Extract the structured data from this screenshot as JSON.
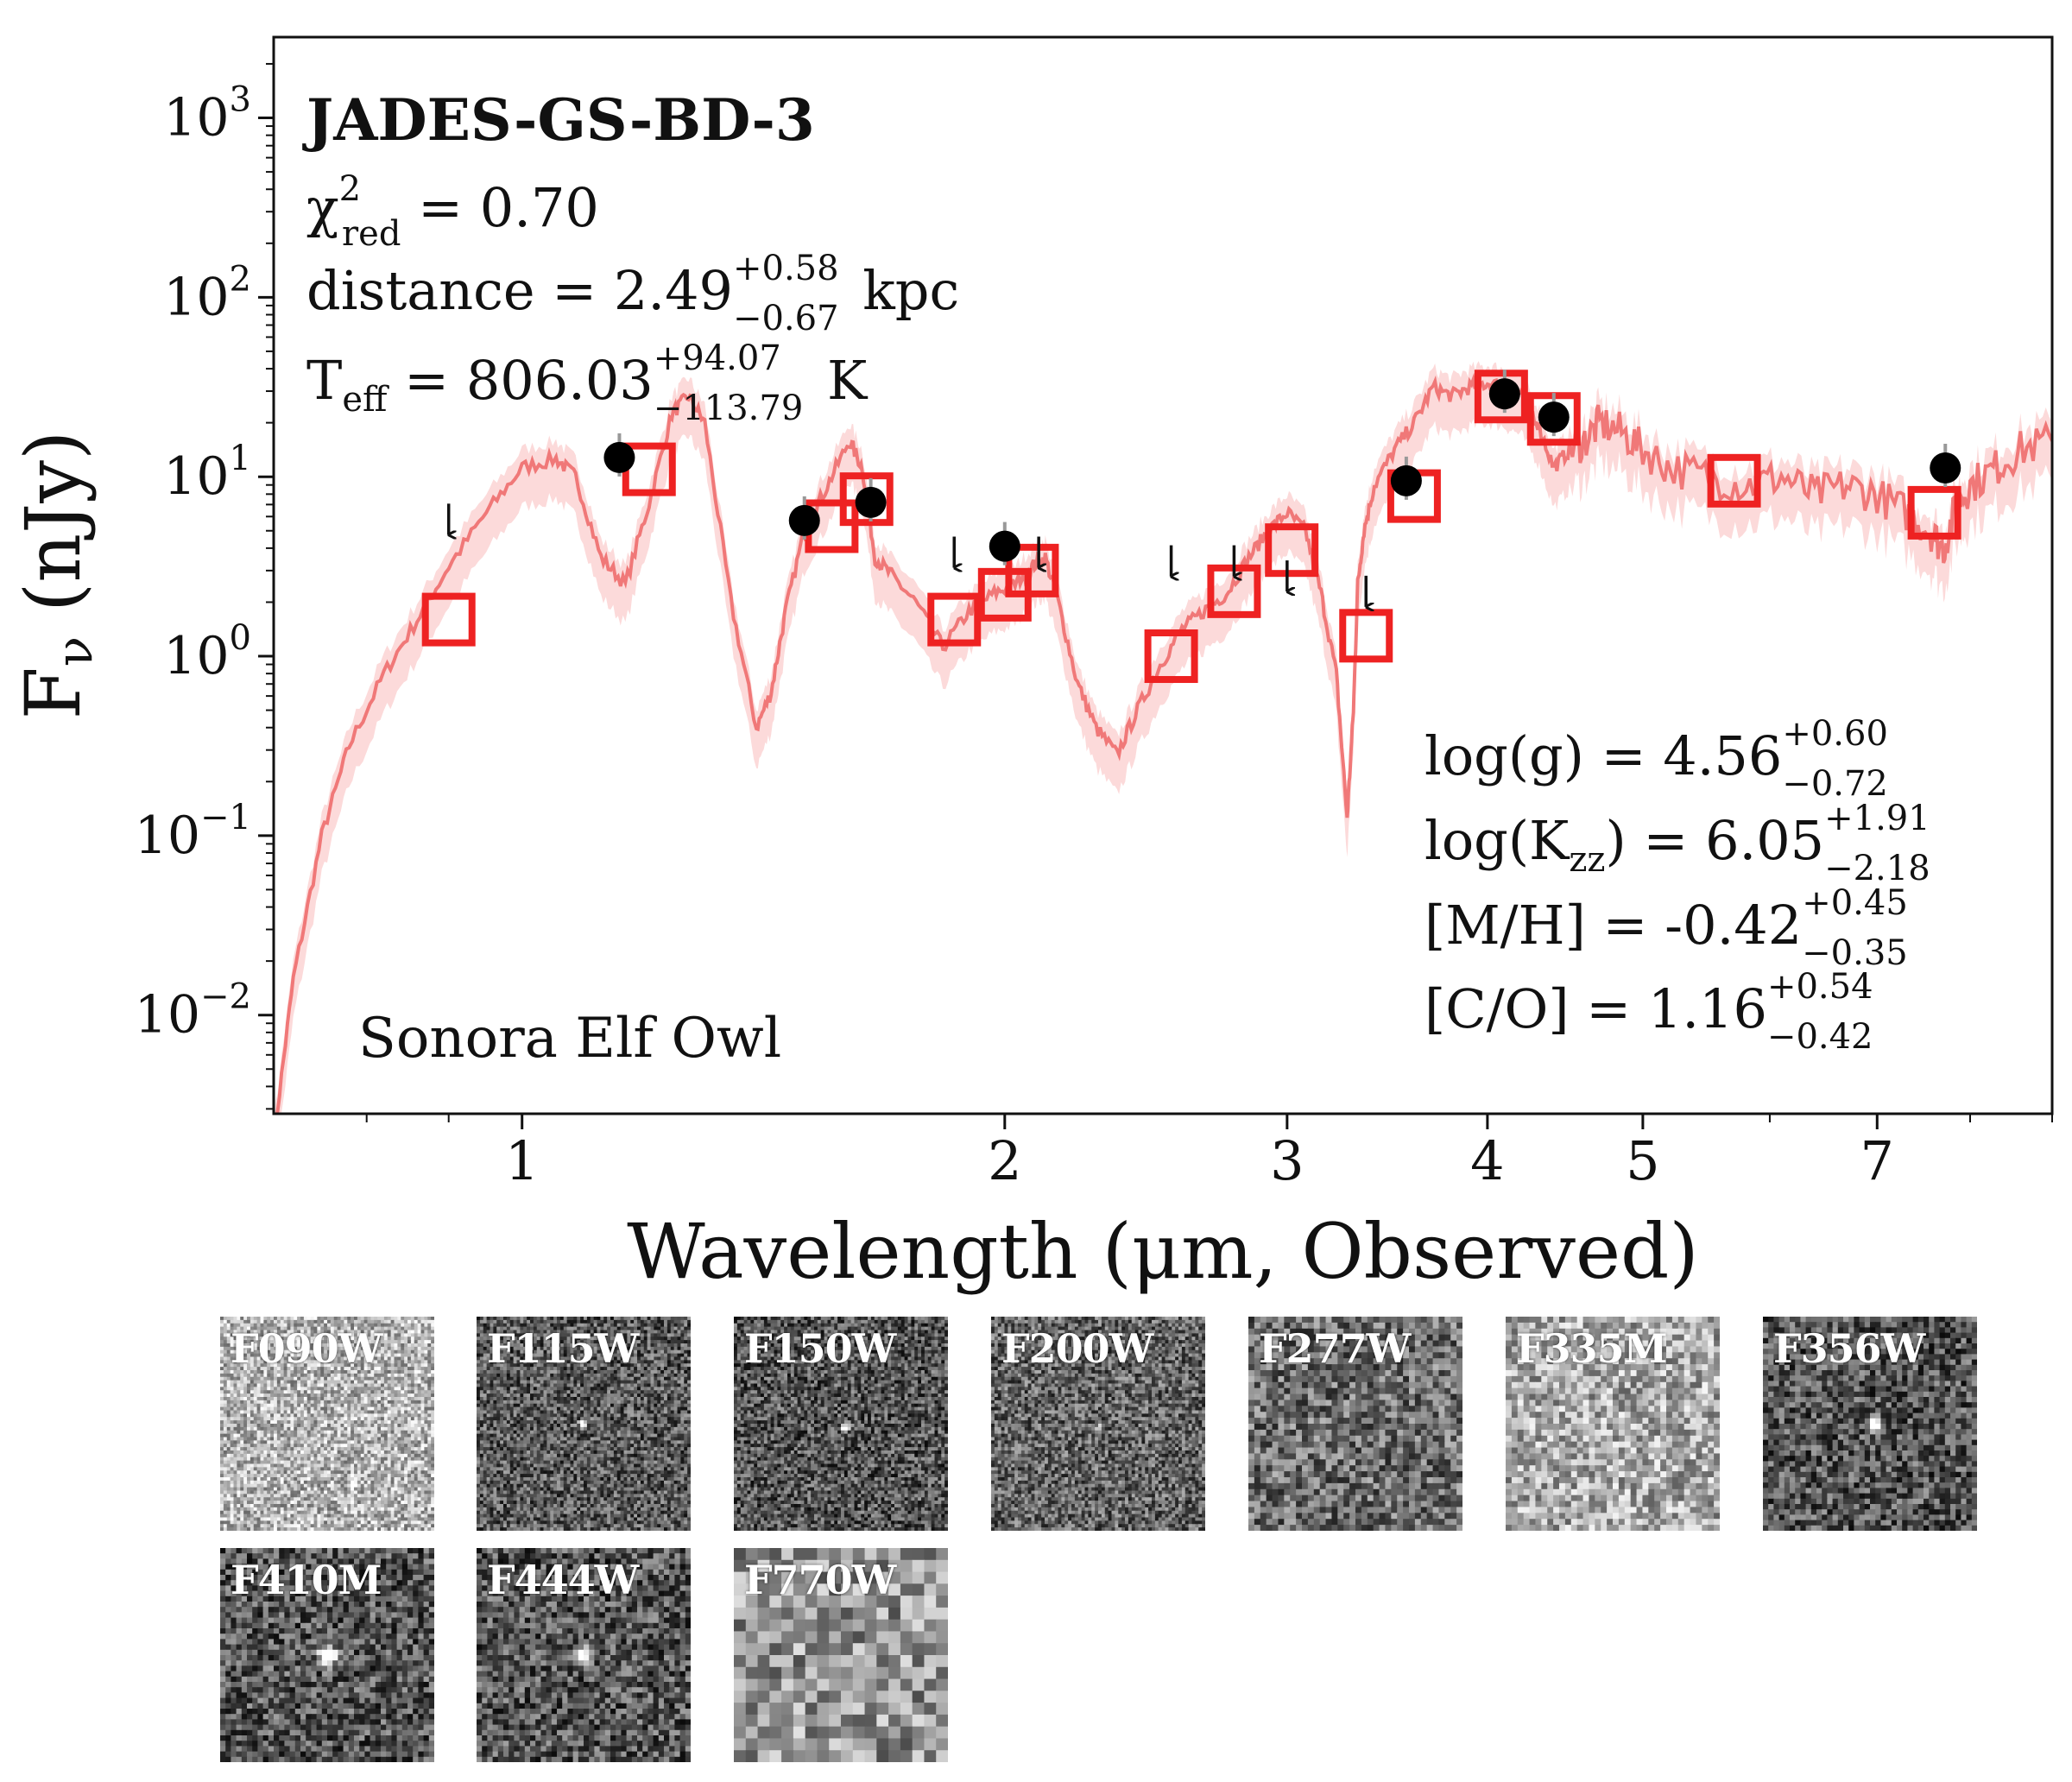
{
  "chart_data": {
    "type": "scatter",
    "title": "JADES-GS-BD-3",
    "xlabel": "Wavelength (μm, Observed)",
    "ylabel_main": "F",
    "ylabel_sub": "ν",
    "ylabel_unit": " (nJy)",
    "x_scale": "log",
    "y_scale": "log",
    "xlim": [
      0.7,
      9.0
    ],
    "ylim_log10": [
      -2.55,
      3.45
    ],
    "x_ticks": [
      {
        "value": 1,
        "label": "1"
      },
      {
        "value": 2,
        "label": "2"
      },
      {
        "value": 3,
        "label": "3"
      },
      {
        "value": 4,
        "label": "4"
      },
      {
        "value": 5,
        "label": "5"
      },
      {
        "value": 7,
        "label": "7"
      }
    ],
    "y_ticks": [
      {
        "exp": 3,
        "base": "10",
        "sup": "3"
      },
      {
        "exp": 2,
        "base": "10",
        "sup": "2"
      },
      {
        "exp": 1,
        "base": "10",
        "sup": "1"
      },
      {
        "exp": 0,
        "base": "10",
        "sup": "0"
      },
      {
        "exp": -1,
        "base": "10",
        "sup": "−1"
      },
      {
        "exp": -2,
        "base": "10",
        "sup": "−2"
      }
    ],
    "fit_stats": {
      "chi2_symbol": "χ",
      "chi2_sup": "2",
      "chi2_sub": "red",
      "chi2_value": " = 0.70",
      "distance_label": "distance = 2.49",
      "distance_plus": "+0.58",
      "distance_minus": "−0.67",
      "distance_unit": " kpc",
      "teff_label": "T",
      "teff_sub": "eff",
      "teff_value": " = 806.03",
      "teff_plus": "+94.07",
      "teff_minus": "−113.79",
      "teff_unit": " K"
    },
    "params": [
      {
        "label": "log(g) = 4.56",
        "plus": "+0.60",
        "minus": "−0.72"
      },
      {
        "label": "log(K",
        "sub": "zz",
        "label2": ") = 6.05",
        "plus": "+1.91",
        "minus": "−2.18"
      },
      {
        "label": "[M/H] = -0.42",
        "plus": "+0.45",
        "minus": "−0.35"
      },
      {
        "label": "[C/O] = 1.16",
        "plus": "+0.54",
        "minus": "−0.42"
      }
    ],
    "model_name": "Sonora Elf Owl",
    "model_spectrum": {
      "wavelength_um": [
        0.7,
        0.72,
        0.75,
        0.78,
        0.82,
        0.86,
        0.9,
        0.95,
        1.0,
        1.05,
        1.08,
        1.12,
        1.16,
        1.2,
        1.24,
        1.27,
        1.3,
        1.35,
        1.4,
        1.43,
        1.46,
        1.5,
        1.55,
        1.6,
        1.63,
        1.66,
        1.7,
        1.76,
        1.83,
        1.9,
        1.97,
        2.03,
        2.08,
        2.12,
        2.16,
        2.22,
        2.28,
        2.35,
        2.42,
        2.5,
        2.58,
        2.66,
        2.75,
        2.84,
        2.92,
        3.0,
        3.08,
        3.15,
        3.22,
        3.27,
        3.3,
        3.32,
        3.35,
        3.4,
        3.5,
        3.6,
        3.7,
        3.8,
        3.9,
        4.0,
        4.1,
        4.2,
        4.3,
        4.4,
        4.5,
        4.6,
        4.7,
        4.85,
        5.0,
        5.2,
        5.5,
        5.8,
        6.1,
        6.4,
        6.7,
        7.0,
        7.3,
        7.55,
        7.7,
        7.85,
        8.0,
        8.3,
        8.6,
        9.0
      ],
      "flux_log10": [
        -2.7,
        -1.8,
        -1.0,
        -0.5,
        -0.1,
        0.2,
        0.5,
        0.8,
        1.05,
        1.1,
        1.0,
        0.55,
        0.4,
        0.85,
        1.35,
        1.45,
        1.3,
        0.3,
        -0.4,
        -0.2,
        0.25,
        0.7,
        0.95,
        1.2,
        1.05,
        0.55,
        0.45,
        0.3,
        0.05,
        0.25,
        0.35,
        0.4,
        0.5,
        0.55,
        0.3,
        -0.15,
        -0.4,
        -0.55,
        -0.3,
        -0.05,
        0.15,
        0.25,
        0.35,
        0.55,
        0.7,
        0.8,
        0.7,
        0.35,
        -0.1,
        -0.9,
        -0.3,
        0.4,
        0.7,
        0.95,
        1.15,
        1.3,
        1.5,
        1.45,
        1.5,
        1.52,
        1.5,
        1.45,
        1.3,
        1.05,
        1.15,
        1.2,
        1.3,
        1.25,
        1.15,
        1.05,
        1.0,
        0.95,
        1.0,
        0.9,
        0.95,
        0.9,
        0.8,
        0.7,
        0.6,
        0.85,
        0.95,
        1.05,
        1.15,
        1.2
      ]
    },
    "series": [
      {
        "name": "model photometry",
        "marker": "open-square",
        "x": [
          0.9,
          1.2,
          1.56,
          1.64,
          1.86,
          2.0,
          2.08,
          2.54,
          2.78,
          3.02,
          3.36,
          3.6,
          4.08,
          4.4,
          5.7,
          7.6
        ],
        "y": [
          1.6,
          11.0,
          5.3,
          7.5,
          1.6,
          2.2,
          3.0,
          1.0,
          2.3,
          3.9,
          1.3,
          7.8,
          28.0,
          21.0,
          9.5,
          6.3
        ]
      },
      {
        "name": "observed detections",
        "marker": "filled-circle",
        "x": [
          1.15,
          1.5,
          1.65,
          2.0,
          3.56,
          4.1,
          4.4,
          7.72
        ],
        "y": [
          12.8,
          5.7,
          7.2,
          4.1,
          9.5,
          29.0,
          21.5,
          11.2
        ]
      },
      {
        "name": "upper limits",
        "marker": "down-arrow",
        "x": [
          0.9,
          1.86,
          2.1,
          2.54,
          2.78,
          3.0,
          3.36
        ],
        "y": [
          5.8,
          3.8,
          3.8,
          3.4,
          3.4,
          2.8,
          2.3
        ]
      }
    ],
    "colors": {
      "model_line": "#f07878",
      "model_band": "#fbd3d3",
      "square": "#ee2222",
      "detection": "#000000",
      "axis": "#111111"
    }
  },
  "cutouts": {
    "row1": [
      "F090W",
      "F115W",
      "F150W",
      "F200W",
      "F277W",
      "F335M",
      "F356W"
    ],
    "row2": [
      "F410M",
      "F444W",
      "F770W"
    ]
  }
}
